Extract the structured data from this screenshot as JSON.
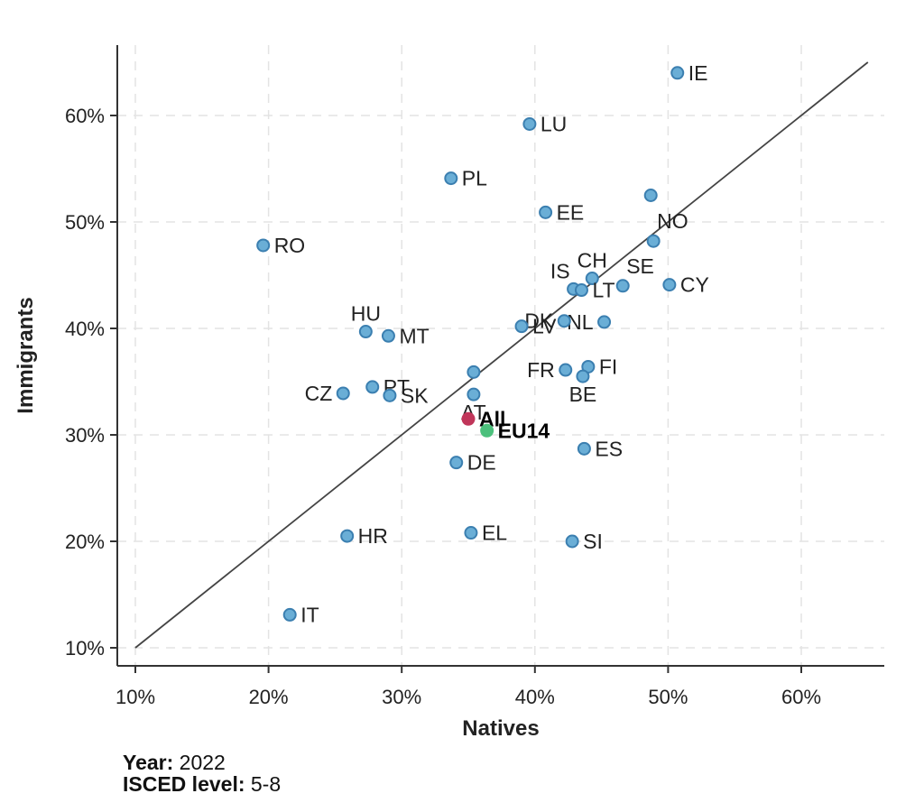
{
  "chart_data": {
    "type": "scatter",
    "xlabel": "Natives",
    "ylabel": "Immigrants",
    "xlim": [
      0.09,
      0.65
    ],
    "ylim": [
      0.09,
      0.66
    ],
    "x_ticks": [
      0.1,
      0.2,
      0.3,
      0.4,
      0.5,
      0.6
    ],
    "x_tick_labels": [
      "10%",
      "20%",
      "30%",
      "40%",
      "50%",
      "60%"
    ],
    "y_ticks": [
      0.1,
      0.2,
      0.3,
      0.4,
      0.5,
      0.6
    ],
    "y_tick_labels": [
      "10%",
      "20%",
      "30%",
      "40%",
      "50%",
      "60%"
    ],
    "grid": true,
    "reference_line": {
      "from": [
        0.1,
        0.1
      ],
      "to": [
        0.65,
        0.65
      ],
      "color": "#444444"
    },
    "colors": {
      "country": "#6aaed6",
      "country_edge": "#3b7fb0",
      "all": "#c0365a",
      "eu14": "#4cc07c"
    },
    "points": [
      {
        "label": "IE",
        "x": 0.507,
        "y": 0.64,
        "group": "country",
        "anchor": "right"
      },
      {
        "label": "LU",
        "x": 0.396,
        "y": 0.592,
        "group": "country",
        "anchor": "right"
      },
      {
        "label": "PL",
        "x": 0.337,
        "y": 0.541,
        "group": "country",
        "anchor": "right"
      },
      {
        "label": "",
        "x": 0.487,
        "y": 0.525,
        "group": "country",
        "anchor": "right"
      },
      {
        "label": "EE",
        "x": 0.408,
        "y": 0.509,
        "group": "country",
        "anchor": "right"
      },
      {
        "label": "NO",
        "x": 0.489,
        "y": 0.482,
        "group": "country",
        "anchor": "above-right"
      },
      {
        "label": "RO",
        "x": 0.196,
        "y": 0.478,
        "group": "country",
        "anchor": "right"
      },
      {
        "label": "CH",
        "x": 0.443,
        "y": 0.447,
        "group": "country",
        "anchor": "above"
      },
      {
        "label": "SE",
        "x": 0.466,
        "y": 0.44,
        "group": "country",
        "anchor": "above-right"
      },
      {
        "label": "CY",
        "x": 0.501,
        "y": 0.441,
        "group": "country",
        "anchor": "right"
      },
      {
        "label": "IS",
        "x": 0.429,
        "y": 0.437,
        "group": "country",
        "anchor": "above-left"
      },
      {
        "label": "LT",
        "x": 0.435,
        "y": 0.436,
        "group": "country",
        "anchor": "right"
      },
      {
        "label": "NL",
        "x": 0.452,
        "y": 0.406,
        "group": "country",
        "anchor": "left"
      },
      {
        "label": "DK",
        "x": 0.422,
        "y": 0.407,
        "group": "country",
        "anchor": "left"
      },
      {
        "label": "LV",
        "x": 0.39,
        "y": 0.402,
        "group": "country",
        "anchor": "right"
      },
      {
        "label": "HU",
        "x": 0.273,
        "y": 0.397,
        "group": "country",
        "anchor": "above"
      },
      {
        "label": "MT",
        "x": 0.29,
        "y": 0.393,
        "group": "country",
        "anchor": "right"
      },
      {
        "label": "FI",
        "x": 0.44,
        "y": 0.364,
        "group": "country",
        "anchor": "right"
      },
      {
        "label": "FR",
        "x": 0.423,
        "y": 0.361,
        "group": "country",
        "anchor": "left"
      },
      {
        "label": "",
        "x": 0.354,
        "y": 0.359,
        "group": "country",
        "anchor": "right"
      },
      {
        "label": "BE",
        "x": 0.436,
        "y": 0.355,
        "group": "country",
        "anchor": "below"
      },
      {
        "label": "PT",
        "x": 0.278,
        "y": 0.345,
        "group": "country",
        "anchor": "right"
      },
      {
        "label": "CZ",
        "x": 0.256,
        "y": 0.339,
        "group": "country",
        "anchor": "left"
      },
      {
        "label": "SK",
        "x": 0.291,
        "y": 0.337,
        "group": "country",
        "anchor": "right"
      },
      {
        "label": "AT",
        "x": 0.354,
        "y": 0.338,
        "group": "country",
        "anchor": "below"
      },
      {
        "label": "All",
        "x": 0.35,
        "y": 0.315,
        "group": "all",
        "anchor": "right"
      },
      {
        "label": "EU14",
        "x": 0.364,
        "y": 0.304,
        "group": "eu14",
        "anchor": "right"
      },
      {
        "label": "ES",
        "x": 0.437,
        "y": 0.287,
        "group": "country",
        "anchor": "right"
      },
      {
        "label": "DE",
        "x": 0.341,
        "y": 0.274,
        "group": "country",
        "anchor": "right"
      },
      {
        "label": "EL",
        "x": 0.352,
        "y": 0.208,
        "group": "country",
        "anchor": "right"
      },
      {
        "label": "HR",
        "x": 0.259,
        "y": 0.205,
        "group": "country",
        "anchor": "right"
      },
      {
        "label": "SI",
        "x": 0.428,
        "y": 0.2,
        "group": "country",
        "anchor": "right"
      },
      {
        "label": "IT",
        "x": 0.216,
        "y": 0.131,
        "group": "country",
        "anchor": "right"
      }
    ]
  },
  "footnote": {
    "year_label": "Year:",
    "year_value": "2022",
    "isced_label": "ISCED level:",
    "isced_value": "5-8"
  }
}
